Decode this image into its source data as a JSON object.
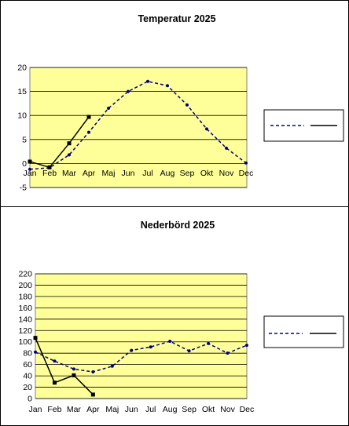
{
  "chart_data": [
    {
      "type": "line",
      "title": "Temperatur 2025",
      "categories": [
        "Jan",
        "Feb",
        "Mar",
        "Apr",
        "Maj",
        "Jun",
        "Jul",
        "Aug",
        "Sep",
        "Okt",
        "Nov",
        "Dec"
      ],
      "ylim": [
        -5,
        20
      ],
      "yticks": [
        -5,
        0,
        5,
        10,
        15,
        20
      ],
      "grid": true,
      "plot_background": "#ffff99",
      "legend": "right",
      "series": [
        {
          "style": "dashed",
          "color": "#000080",
          "values": [
            -1.2,
            -0.9,
            1.8,
            6.5,
            11.5,
            15.0,
            17.1,
            16.2,
            12.2,
            7.2,
            3.2,
            0.1
          ]
        },
        {
          "style": "solid",
          "color": "#000000",
          "values": [
            0.4,
            -0.8,
            4.2,
            9.7,
            null,
            null,
            null,
            null,
            null,
            null,
            null,
            null
          ]
        }
      ]
    },
    {
      "type": "line",
      "title": "Nederbörd 2025",
      "categories": [
        "Jan",
        "Feb",
        "Mar",
        "Apr",
        "Maj",
        "Jun",
        "Jul",
        "Aug",
        "Sep",
        "Okt",
        "Nov",
        "Dec"
      ],
      "ylim": [
        0,
        220
      ],
      "yticks": [
        0,
        20,
        40,
        60,
        80,
        100,
        120,
        140,
        160,
        180,
        200,
        220
      ],
      "grid": true,
      "plot_background": "#ffff99",
      "legend": "right",
      "series": [
        {
          "style": "dashed",
          "color": "#000080",
          "values": [
            82,
            66,
            52,
            47,
            57,
            85,
            91,
            101,
            84,
            97,
            80,
            94
          ]
        },
        {
          "style": "solid",
          "color": "#000000",
          "values": [
            107,
            28,
            41,
            7,
            null,
            null,
            null,
            null,
            null,
            null,
            null,
            null
          ]
        }
      ]
    }
  ]
}
